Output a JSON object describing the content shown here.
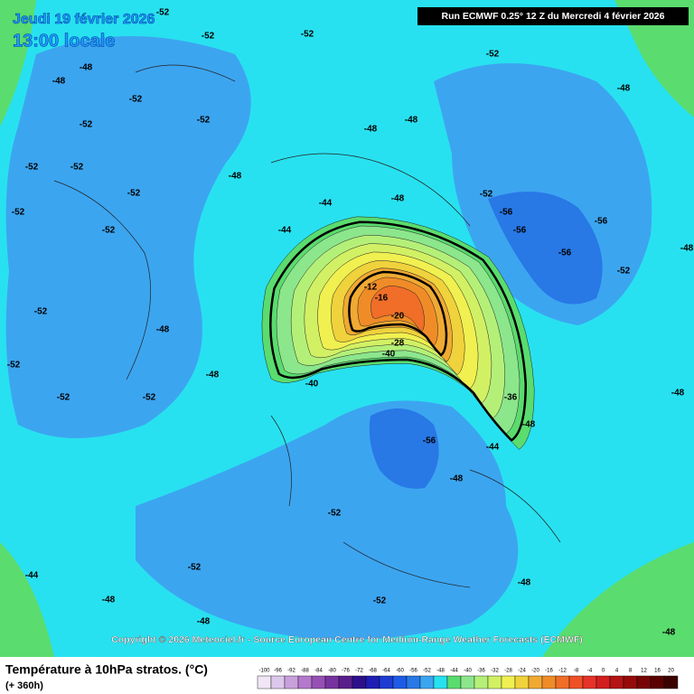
{
  "header": {
    "date": "Jeudi 19 février 2026",
    "time": "13:00 locale",
    "run": "Run ECMWF 0.25° 12 Z du Mercredi 4 février 2026"
  },
  "copyright": "Copyright © 2026 Meteociel.fr - Source European Centre for Medium-Range Weather Forecasts (ECMWF)",
  "legend": {
    "title": "Température à 10hPa stratos. (°C)",
    "subtitle": "(+ 360h)",
    "labels": [
      -100,
      -96,
      -92,
      -88,
      -84,
      -80,
      -76,
      -72,
      -68,
      -64,
      -60,
      -56,
      -52,
      -48,
      -44,
      -40,
      -36,
      -32,
      -28,
      -24,
      -20,
      -16,
      -12,
      -8,
      -4,
      0,
      4,
      8,
      12,
      16,
      20
    ],
    "colors": [
      "#f0e6f5",
      "#dcc8eb",
      "#c8a0dc",
      "#b478cc",
      "#9650b4",
      "#7832a0",
      "#5a1e8c",
      "#2d0f8c",
      "#1e1eb4",
      "#1e3cd2",
      "#1e5ae6",
      "#2878e6",
      "#3ca5f0",
      "#28e1f0",
      "#5adc6e",
      "#8ce68c",
      "#b4f078",
      "#d2f064",
      "#f0f050",
      "#f0d23c",
      "#f0aa32",
      "#f08c28",
      "#f06e28",
      "#f05028",
      "#e63228",
      "#d21e1e",
      "#b41414",
      "#960a0a",
      "#780505",
      "#5a0000",
      "#3c0000"
    ]
  },
  "contour_labels": [
    -52,
    -52,
    -48,
    -52,
    -48,
    -52,
    -52,
    -52,
    -52,
    -52,
    -52,
    -52,
    -52,
    -48,
    -52,
    -52,
    -52,
    -48,
    -48,
    -48,
    -48,
    -44,
    -44,
    -48,
    -52,
    -56,
    -56,
    -56,
    -56,
    -52,
    -48,
    -48,
    -52,
    -12,
    -16,
    -20,
    -28,
    -40,
    -36,
    -40,
    -56,
    -48,
    -44,
    -48,
    -52,
    -52,
    -44,
    -48,
    -48,
    -52,
    -48,
    -48,
    -48,
    -52
  ]
}
